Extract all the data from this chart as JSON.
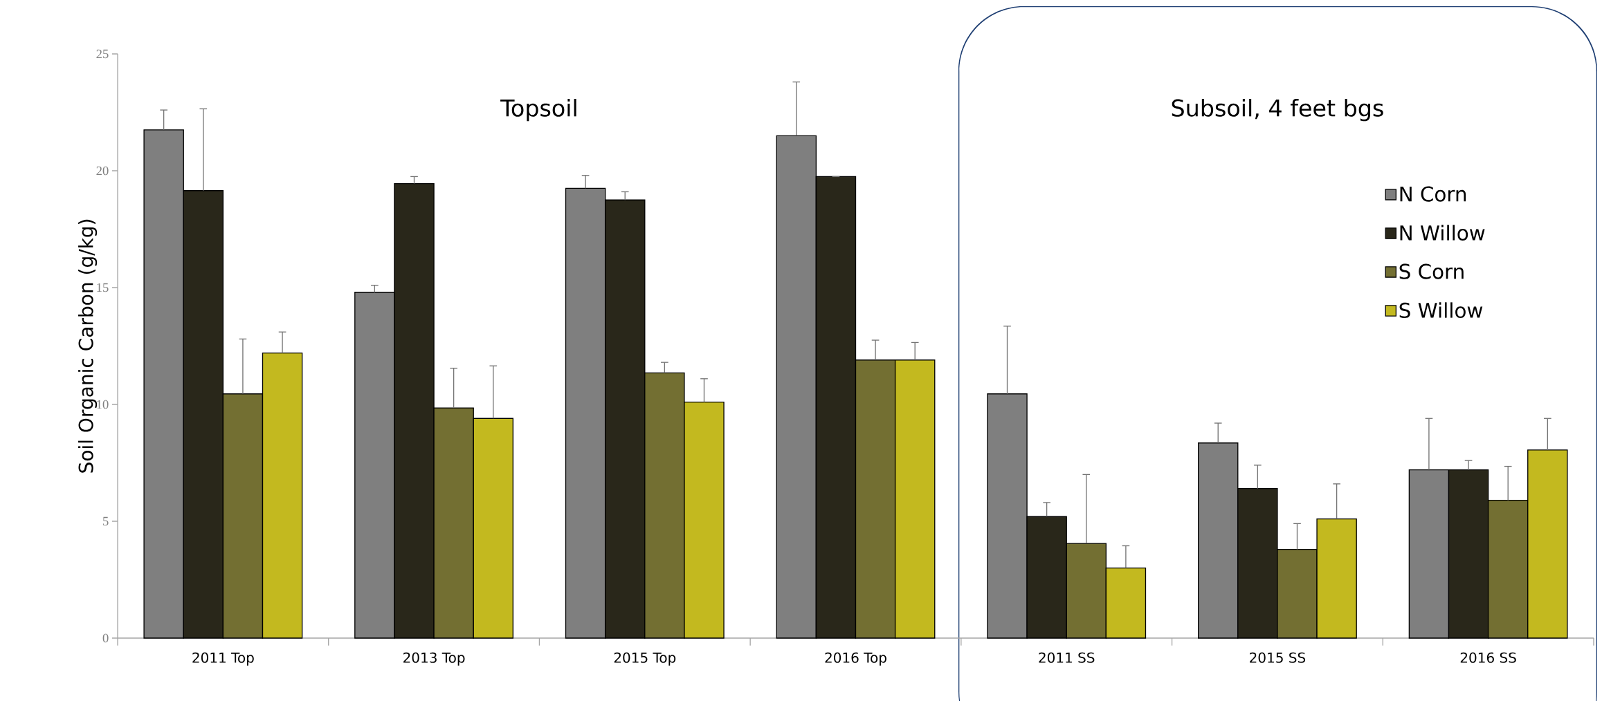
{
  "chart_data": {
    "type": "bar",
    "ylabel": "Soil Organic Carbon (g/kg)",
    "annotations": [
      "Topsoil",
      "Subsoil, 4 feet bgs"
    ],
    "categories": [
      "2011 Top",
      "2013 Top",
      "2015 Top",
      "2016 Top",
      "2011 SS",
      "2015 SS",
      "2016 SS"
    ],
    "series": [
      {
        "name": "N Corn",
        "color": "#7f7f7f",
        "values": [
          21.75,
          14.8,
          19.25,
          21.5,
          10.45,
          8.35,
          7.2
        ],
        "errors": [
          0.85,
          0.3,
          0.55,
          2.3,
          2.9,
          0.85,
          2.2
        ]
      },
      {
        "name": "N Willow",
        "color": "#29271a",
        "values": [
          19.15,
          19.45,
          18.75,
          19.75,
          5.2,
          6.4,
          7.2
        ],
        "errors": [
          3.5,
          0.3,
          0.35,
          null,
          0.6,
          1.0,
          0.4
        ]
      },
      {
        "name": "S Corn",
        "color": "#736f32",
        "values": [
          10.45,
          9.85,
          11.35,
          11.9,
          4.05,
          3.8,
          5.9
        ],
        "errors": [
          2.35,
          1.7,
          0.45,
          0.85,
          2.95,
          1.1,
          1.45
        ]
      },
      {
        "name": "S Willow",
        "color": "#c3b91f",
        "values": [
          12.2,
          9.4,
          10.1,
          11.9,
          3.0,
          5.1,
          8.05
        ],
        "errors": [
          0.9,
          2.25,
          1.0,
          0.75,
          0.95,
          1.5,
          1.35
        ]
      }
    ],
    "ylim": [
      0,
      25
    ],
    "yticks": [
      0,
      5,
      10,
      15,
      20,
      25
    ],
    "grid": false,
    "legend": "top right"
  }
}
